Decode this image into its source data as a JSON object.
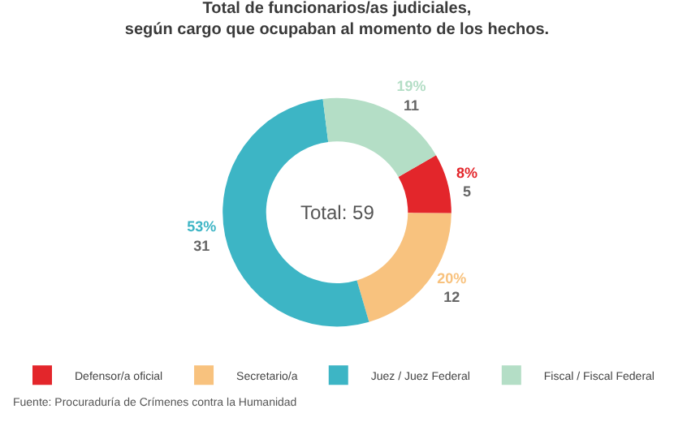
{
  "chart_data": {
    "type": "donut",
    "title": "Total de funcionarios/as judiciales,\nsegún cargo que ocupaban al momento de los hechos.",
    "categories": [
      "Defensor/a oficial",
      "Secretario/a",
      "Juez / Juez Federal",
      "Fiscal / Fiscal Federal"
    ],
    "values": [
      5,
      12,
      31,
      11
    ],
    "value_labels": [
      "8%\n5",
      "20%\n12",
      "53%\n31",
      "19%\n11"
    ],
    "colors": [
      "#e3262b",
      "#f8c27e",
      "#3db5c5",
      "#b4dec6"
    ],
    "legend": "bottom",
    "annotations": [
      "Total: 59",
      "Fuente: Procuraduría de Crímenes contra la Humanidad"
    ]
  }
}
